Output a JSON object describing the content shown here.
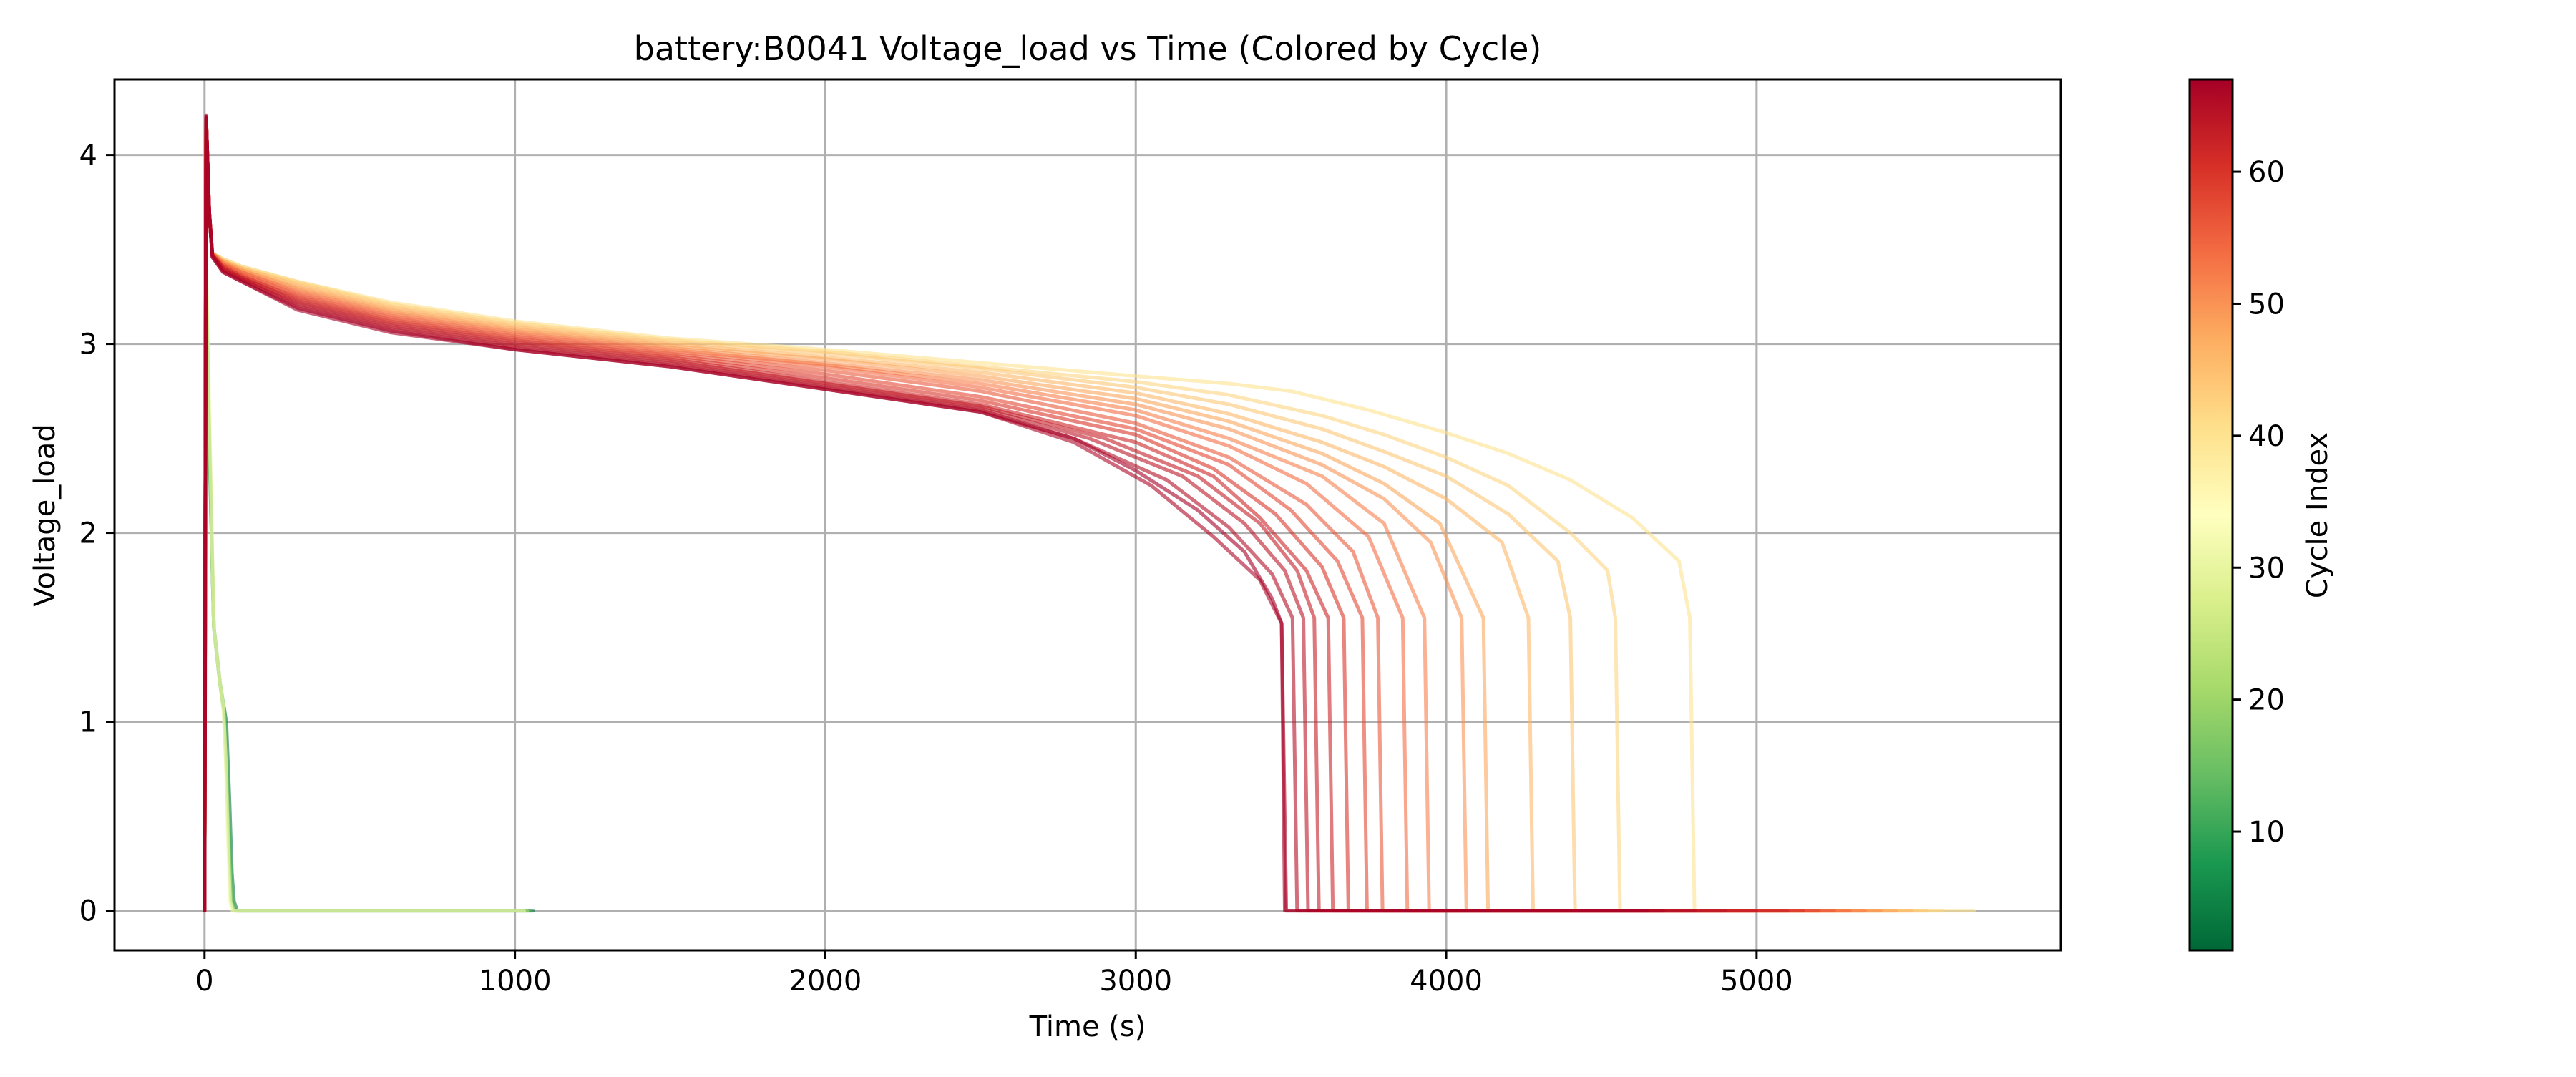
{
  "chart_data": {
    "type": "line",
    "title": "battery:B0041 Voltage_load vs Time (Colored by Cycle)",
    "xlabel": "Time (s)",
    "ylabel": "Voltage_load",
    "xlim": [
      -290,
      5980
    ],
    "ylim": [
      -0.21,
      4.4
    ],
    "xticks": [
      0,
      1000,
      2000,
      3000,
      4000,
      5000
    ],
    "xtick_labels": [
      "0",
      "1000",
      "2000",
      "3000",
      "4000",
      "5000"
    ],
    "yticks": [
      0,
      1,
      2,
      3,
      4
    ],
    "ytick_labels": [
      "0",
      "1",
      "2",
      "3",
      "4"
    ],
    "grid": true,
    "legend": "none",
    "colorbar": {
      "label": "Cycle Index",
      "colormap": "RdYlGn_r",
      "range": [
        1,
        67
      ],
      "ticks": [
        10,
        20,
        30,
        40,
        50,
        60
      ],
      "tick_labels": [
        "10",
        "20",
        "30",
        "40",
        "50",
        "60"
      ],
      "colors": [
        "#006837",
        "#1a9850",
        "#66bd63",
        "#a6d96a",
        "#d9ef8b",
        "#ffffbf",
        "#fee08b",
        "#fdae61",
        "#f46d43",
        "#d73027",
        "#a50026"
      ]
    },
    "series": [
      {
        "cycle": 3,
        "x": [
          0,
          5,
          15,
          30,
          50,
          70,
          80,
          88,
          95,
          105,
          300,
          600,
          900,
          1060
        ],
        "y": [
          0,
          3.3,
          2.5,
          1.5,
          1.2,
          1.0,
          0.6,
          0.2,
          0.05,
          0,
          0,
          0,
          0,
          0
        ]
      },
      {
        "cycle": 12,
        "x": [
          0,
          5,
          15,
          30,
          50,
          65,
          75,
          82,
          90,
          100,
          300,
          600,
          900,
          1050
        ],
        "y": [
          0,
          3.3,
          2.5,
          1.5,
          1.2,
          1.05,
          0.7,
          0.3,
          0.05,
          0,
          0,
          0,
          0,
          0
        ]
      },
      {
        "cycle": 22,
        "x": [
          0,
          5,
          15,
          30,
          50,
          62,
          70,
          78,
          85,
          95,
          300,
          600,
          900,
          1040
        ],
        "y": [
          0,
          3.4,
          2.6,
          1.5,
          1.2,
          1.05,
          0.75,
          0.35,
          0.05,
          0,
          0,
          0,
          0,
          0
        ]
      },
      {
        "cycle": 32,
        "x": [
          0,
          5,
          15,
          30,
          50,
          60,
          68,
          75,
          82,
          90,
          300,
          600,
          900,
          1030
        ],
        "y": [
          0,
          3.5,
          2.7,
          1.5,
          1.2,
          1.1,
          0.8,
          0.4,
          0.05,
          0,
          0,
          0,
          0,
          0
        ]
      },
      {
        "cycle": 40,
        "x": [
          0,
          5,
          15,
          25,
          60,
          120,
          300,
          600,
          1000,
          1500,
          2000,
          2500,
          3000,
          3300,
          3500,
          3750,
          4000,
          4200,
          4400,
          4600,
          4750,
          4785,
          4800,
          5700
        ],
        "y": [
          0,
          4.2,
          3.7,
          3.48,
          3.45,
          3.41,
          3.33,
          3.22,
          3.12,
          3.03,
          2.97,
          2.9,
          2.83,
          2.79,
          2.75,
          2.65,
          2.53,
          2.42,
          2.28,
          2.08,
          1.85,
          1.55,
          0,
          0
        ]
      },
      {
        "cycle": 42,
        "x": [
          0,
          5,
          15,
          25,
          60,
          120,
          300,
          600,
          1000,
          1500,
          2000,
          2500,
          3000,
          3300,
          3600,
          3800,
          4000,
          4200,
          4400,
          4520,
          4545,
          4560,
          5600
        ],
        "y": [
          0,
          4.2,
          3.7,
          3.48,
          3.45,
          3.41,
          3.33,
          3.21,
          3.11,
          3.02,
          2.96,
          2.88,
          2.8,
          2.73,
          2.62,
          2.52,
          2.4,
          2.25,
          2.0,
          1.8,
          1.55,
          0,
          0
        ]
      },
      {
        "cycle": 44,
        "x": [
          0,
          5,
          15,
          25,
          60,
          120,
          300,
          600,
          1000,
          1500,
          2000,
          2500,
          3000,
          3300,
          3600,
          3800,
          4000,
          4200,
          4360,
          4400,
          4415,
          5550
        ],
        "y": [
          0,
          4.2,
          3.7,
          3.48,
          3.44,
          3.4,
          3.32,
          3.2,
          3.1,
          3.01,
          2.95,
          2.87,
          2.77,
          2.68,
          2.55,
          2.43,
          2.3,
          2.1,
          1.85,
          1.55,
          0,
          0
        ]
      },
      {
        "cycle": 46,
        "x": [
          0,
          5,
          15,
          25,
          60,
          120,
          300,
          600,
          1000,
          1500,
          2000,
          2500,
          3000,
          3300,
          3600,
          3800,
          4000,
          4180,
          4265,
          4280,
          5500
        ],
        "y": [
          0,
          4.2,
          3.7,
          3.48,
          3.44,
          3.4,
          3.31,
          3.19,
          3.09,
          3.0,
          2.93,
          2.85,
          2.74,
          2.63,
          2.48,
          2.35,
          2.18,
          1.95,
          1.55,
          0,
          0
        ]
      },
      {
        "cycle": 48,
        "x": [
          0,
          5,
          15,
          25,
          60,
          120,
          300,
          600,
          1000,
          1500,
          2000,
          2500,
          3000,
          3300,
          3600,
          3800,
          3980,
          4120,
          4135,
          5450
        ],
        "y": [
          0,
          4.2,
          3.7,
          3.48,
          3.44,
          3.39,
          3.3,
          3.18,
          3.08,
          2.99,
          2.92,
          2.83,
          2.71,
          2.59,
          2.42,
          2.26,
          2.05,
          1.55,
          0,
          0
        ]
      },
      {
        "cycle": 50,
        "x": [
          0,
          5,
          15,
          25,
          60,
          120,
          300,
          600,
          1000,
          1500,
          2000,
          2500,
          3000,
          3300,
          3600,
          3800,
          3950,
          4050,
          4065,
          5400
        ],
        "y": [
          0,
          4.2,
          3.7,
          3.48,
          3.43,
          3.39,
          3.29,
          3.17,
          3.07,
          2.98,
          2.9,
          2.81,
          2.68,
          2.55,
          2.36,
          2.18,
          1.95,
          1.55,
          0,
          0
        ]
      },
      {
        "cycle": 52,
        "x": [
          0,
          5,
          15,
          25,
          60,
          120,
          300,
          600,
          1000,
          1500,
          2000,
          2500,
          3000,
          3300,
          3600,
          3800,
          3930,
          3945,
          5350
        ],
        "y": [
          0,
          4.2,
          3.7,
          3.48,
          3.43,
          3.38,
          3.28,
          3.16,
          3.06,
          2.97,
          2.89,
          2.79,
          2.65,
          2.5,
          2.3,
          2.05,
          1.55,
          0,
          0
        ]
      },
      {
        "cycle": 54,
        "x": [
          0,
          5,
          15,
          25,
          60,
          120,
          300,
          600,
          1000,
          1500,
          2000,
          2500,
          3000,
          3300,
          3550,
          3750,
          3860,
          3875,
          5300
        ],
        "y": [
          0,
          4.2,
          3.7,
          3.48,
          3.42,
          3.38,
          3.27,
          3.15,
          3.05,
          2.96,
          2.88,
          2.77,
          2.62,
          2.46,
          2.26,
          1.98,
          1.55,
          0,
          0
        ]
      },
      {
        "cycle": 56,
        "x": [
          0,
          5,
          15,
          25,
          60,
          120,
          300,
          600,
          1000,
          1500,
          2000,
          2500,
          3000,
          3300,
          3550,
          3700,
          3780,
          3795,
          5250
        ],
        "y": [
          0,
          4.2,
          3.7,
          3.47,
          3.42,
          3.37,
          3.26,
          3.14,
          3.04,
          2.95,
          2.86,
          2.75,
          2.58,
          2.4,
          2.15,
          1.9,
          1.55,
          0,
          0
        ]
      },
      {
        "cycle": 58,
        "x": [
          0,
          5,
          15,
          25,
          60,
          120,
          300,
          600,
          1000,
          1500,
          2000,
          2500,
          3000,
          3300,
          3500,
          3650,
          3730,
          3745,
          5200
        ],
        "y": [
          0,
          4.2,
          3.7,
          3.47,
          3.41,
          3.36,
          3.25,
          3.13,
          3.03,
          2.94,
          2.84,
          2.72,
          2.55,
          2.36,
          2.12,
          1.85,
          1.55,
          0,
          0
        ]
      },
      {
        "cycle": 60,
        "x": [
          0,
          5,
          15,
          25,
          60,
          120,
          300,
          600,
          1000,
          1500,
          2000,
          2500,
          3000,
          3250,
          3450,
          3600,
          3670,
          3685,
          5150
        ],
        "y": [
          0,
          4.2,
          3.7,
          3.47,
          3.41,
          3.36,
          3.24,
          3.12,
          3.02,
          2.93,
          2.82,
          2.7,
          2.52,
          2.34,
          2.1,
          1.82,
          1.55,
          0,
          0
        ]
      },
      {
        "cycle": 62,
        "x": [
          0,
          5,
          15,
          25,
          60,
          120,
          300,
          600,
          1000,
          1500,
          2000,
          2500,
          3000,
          3250,
          3400,
          3550,
          3620,
          3635,
          5100
        ],
        "y": [
          0,
          4.2,
          3.7,
          3.47,
          3.4,
          3.35,
          3.23,
          3.11,
          3.01,
          2.92,
          2.8,
          2.68,
          2.48,
          2.3,
          2.08,
          1.8,
          1.55,
          0,
          0
        ]
      },
      {
        "cycle": 63,
        "x": [
          0,
          5,
          15,
          25,
          60,
          120,
          300,
          600,
          1000,
          1500,
          2000,
          2500,
          2900,
          3200,
          3400,
          3520,
          3575,
          3590,
          5000
        ],
        "y": [
          0,
          4.2,
          3.7,
          3.47,
          3.4,
          3.35,
          3.22,
          3.1,
          3.0,
          2.91,
          2.79,
          2.67,
          2.5,
          2.3,
          2.05,
          1.8,
          1.55,
          0,
          0
        ]
      },
      {
        "cycle": 64,
        "x": [
          0,
          5,
          15,
          25,
          60,
          120,
          300,
          600,
          1000,
          1500,
          2000,
          2500,
          2850,
          3150,
          3350,
          3480,
          3540,
          3555,
          4900
        ],
        "y": [
          0,
          4.2,
          3.7,
          3.47,
          3.39,
          3.34,
          3.21,
          3.09,
          2.99,
          2.9,
          2.78,
          2.66,
          2.5,
          2.3,
          2.05,
          1.8,
          1.55,
          0,
          0
        ]
      },
      {
        "cycle": 65,
        "x": [
          0,
          5,
          15,
          25,
          60,
          120,
          300,
          600,
          1000,
          1500,
          2000,
          2500,
          2800,
          3100,
          3300,
          3440,
          3505,
          3520,
          4800
        ],
        "y": [
          0,
          4.2,
          3.7,
          3.47,
          3.39,
          3.34,
          3.2,
          3.08,
          2.98,
          2.89,
          2.77,
          2.65,
          2.5,
          2.28,
          2.03,
          1.78,
          1.55,
          0,
          0
        ]
      },
      {
        "cycle": 66,
        "x": [
          0,
          5,
          15,
          25,
          60,
          120,
          300,
          600,
          1000,
          1500,
          2000,
          2500,
          2800,
          3050,
          3250,
          3400,
          3470,
          3485,
          4700
        ],
        "y": [
          0,
          4.2,
          3.7,
          3.46,
          3.38,
          3.33,
          3.19,
          3.07,
          2.97,
          2.88,
          2.76,
          2.64,
          2.48,
          2.25,
          1.98,
          1.75,
          1.52,
          0,
          0
        ]
      },
      {
        "cycle": 67,
        "x": [
          0,
          5,
          15,
          25,
          60,
          120,
          300,
          600,
          1000,
          1500,
          2000,
          2500,
          2800,
          3000,
          3200,
          3350,
          3440,
          3470,
          3480,
          4650
        ],
        "y": [
          0,
          4.21,
          3.7,
          3.46,
          3.38,
          3.33,
          3.18,
          3.06,
          2.97,
          2.88,
          2.76,
          2.64,
          2.5,
          2.33,
          2.12,
          1.9,
          1.65,
          1.52,
          0,
          0
        ]
      }
    ]
  }
}
